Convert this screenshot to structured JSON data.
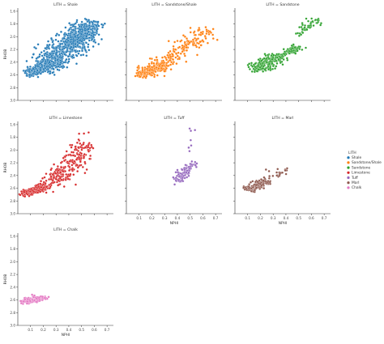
{
  "chart_data": {
    "type": "scatter",
    "facet_variable": "LITH",
    "legend_title": "LITH",
    "legend_position": "right",
    "grid": false,
    "xlabel": "NPHI",
    "ylabel": "RHOB",
    "xlim": [
      0.0,
      0.75
    ],
    "ylim": [
      1.55,
      3.0
    ],
    "y_inverted": true,
    "xticks": [
      0.1,
      0.2,
      0.3,
      0.4,
      0.5,
      0.6,
      0.7
    ],
    "xtick_labels": [
      "0.1",
      "0.2",
      "0.3",
      "0.4",
      "0.5",
      "0.6",
      "0.7"
    ],
    "yticks": [
      1.6,
      1.8,
      2.0,
      2.2,
      2.4,
      2.6,
      2.8,
      3.0
    ],
    "ytick_labels": [
      "1.6",
      "1.8",
      "2.0",
      "2.2",
      "2.4",
      "2.6",
      "2.8",
      "3.0"
    ],
    "panels": [
      {
        "title": "LITH = Shale",
        "lith": "Shale",
        "color": "#1f77b4",
        "clusters": [
          {
            "n": 700,
            "x": [
              0.2,
              0.56
            ],
            "y": [
              2.5,
              1.86
            ],
            "sx": 0.05,
            "sy": 0.09,
            "corr": 0.85
          },
          {
            "n": 260,
            "x": [
              0.08,
              0.26
            ],
            "y": [
              2.6,
              2.42
            ],
            "sx": 0.025,
            "sy": 0.05,
            "corr": 0.6
          },
          {
            "n": 160,
            "x": [
              0.38,
              0.62
            ],
            "y": [
              2.08,
              1.75
            ],
            "sx": 0.035,
            "sy": 0.05,
            "corr": 0.7
          }
        ]
      },
      {
        "title": "LITH = Sandstone/Shale",
        "lith": "Sandstone/Shale",
        "color": "#ff7f0e",
        "clusters": [
          {
            "n": 220,
            "x": [
              0.1,
              0.3
            ],
            "y": [
              2.62,
              2.42
            ],
            "sx": 0.03,
            "sy": 0.05,
            "corr": 0.7
          },
          {
            "n": 160,
            "x": [
              0.3,
              0.65
            ],
            "y": [
              2.4,
              1.9
            ],
            "sx": 0.05,
            "sy": 0.07,
            "corr": 0.6
          }
        ]
      },
      {
        "title": "LITH = Sandstone",
        "lith": "Sandstone",
        "color": "#2ca02c",
        "clusters": [
          {
            "n": 230,
            "x": [
              0.15,
              0.35
            ],
            "y": [
              2.52,
              2.3
            ],
            "sx": 0.035,
            "sy": 0.05,
            "corr": 0.5
          },
          {
            "n": 70,
            "x": [
              0.38,
              0.5
            ],
            "y": [
              2.28,
              2.16
            ],
            "sx": 0.025,
            "sy": 0.03,
            "corr": 0.4
          },
          {
            "n": 45,
            "x": [
              0.5,
              0.65
            ],
            "y": [
              1.95,
              1.72
            ],
            "sx": 0.03,
            "sy": 0.04,
            "corr": 0.5
          }
        ]
      },
      {
        "title": "LITH = Limestone",
        "lith": "Limestone",
        "color": "#d62728",
        "clusters": [
          {
            "n": 200,
            "x": [
              0.03,
              0.22
            ],
            "y": [
              2.7,
              2.56
            ],
            "sx": 0.02,
            "sy": 0.025,
            "corr": 0.6
          },
          {
            "n": 200,
            "x": [
              0.3,
              0.55
            ],
            "y": [
              2.5,
              1.9
            ],
            "sx": 0.04,
            "sy": 0.13,
            "corr": 0.4
          },
          {
            "n": 60,
            "x": [
              0.18,
              0.35
            ],
            "y": [
              2.62,
              2.3
            ],
            "sx": 0.03,
            "sy": 0.06,
            "corr": 0.3
          }
        ]
      },
      {
        "title": "LITH = Tuff",
        "lith": "Tuff",
        "color": "#9467bd",
        "clusters": [
          {
            "n": 95,
            "x": [
              0.38,
              0.52
            ],
            "y": [
              2.5,
              2.2
            ],
            "sx": 0.025,
            "sy": 0.06,
            "corr": 0.3
          },
          {
            "n": 8,
            "x": [
              0.48,
              0.52
            ],
            "y": [
              2.1,
              1.65
            ],
            "sx": 0.015,
            "sy": 0.05,
            "corr": 0.0
          }
        ]
      },
      {
        "title": "LITH = Marl",
        "lith": "Marl",
        "color": "#8c564b",
        "clusters": [
          {
            "n": 130,
            "x": [
              0.1,
              0.25
            ],
            "y": [
              2.62,
              2.48
            ],
            "sx": 0.025,
            "sy": 0.035,
            "corr": 0.6
          },
          {
            "n": 22,
            "x": [
              0.25,
              0.4
            ],
            "y": [
              2.45,
              2.3
            ],
            "sx": 0.035,
            "sy": 0.04,
            "corr": 0.3
          }
        ]
      },
      {
        "title": "LITH = Chalk",
        "lith": "Chalk",
        "color": "#e377c2",
        "clusters": [
          {
            "n": 170,
            "x": [
              0.05,
              0.2
            ],
            "y": [
              2.64,
              2.55
            ],
            "sx": 0.025,
            "sy": 0.025,
            "corr": 0.5
          }
        ]
      }
    ],
    "legend": [
      {
        "label": "Shale",
        "color": "#1f77b4"
      },
      {
        "label": "Sandstone/Shale",
        "color": "#ff7f0e"
      },
      {
        "label": "Sandstone",
        "color": "#2ca02c"
      },
      {
        "label": "Limestone",
        "color": "#d62728"
      },
      {
        "label": "Tuff",
        "color": "#9467bd"
      },
      {
        "label": "Marl",
        "color": "#8c564b"
      },
      {
        "label": "Chalk",
        "color": "#e377c2"
      }
    ]
  }
}
